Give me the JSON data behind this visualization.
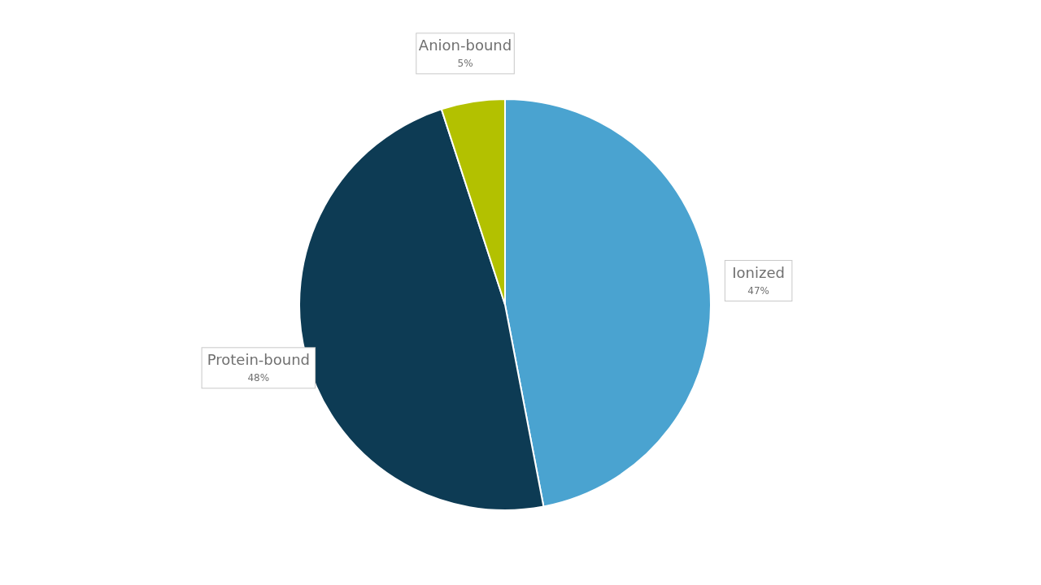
{
  "chart_data": {
    "type": "pie",
    "categories": [
      "Ionized",
      "Protein-bound",
      "Anion-bound"
    ],
    "values": [
      47,
      48,
      5
    ],
    "colors": [
      "#4aa3d0",
      "#0d3b54",
      "#b3c100"
    ],
    "value_labels": [
      "47%",
      "48%",
      "5%"
    ],
    "legend": false
  }
}
